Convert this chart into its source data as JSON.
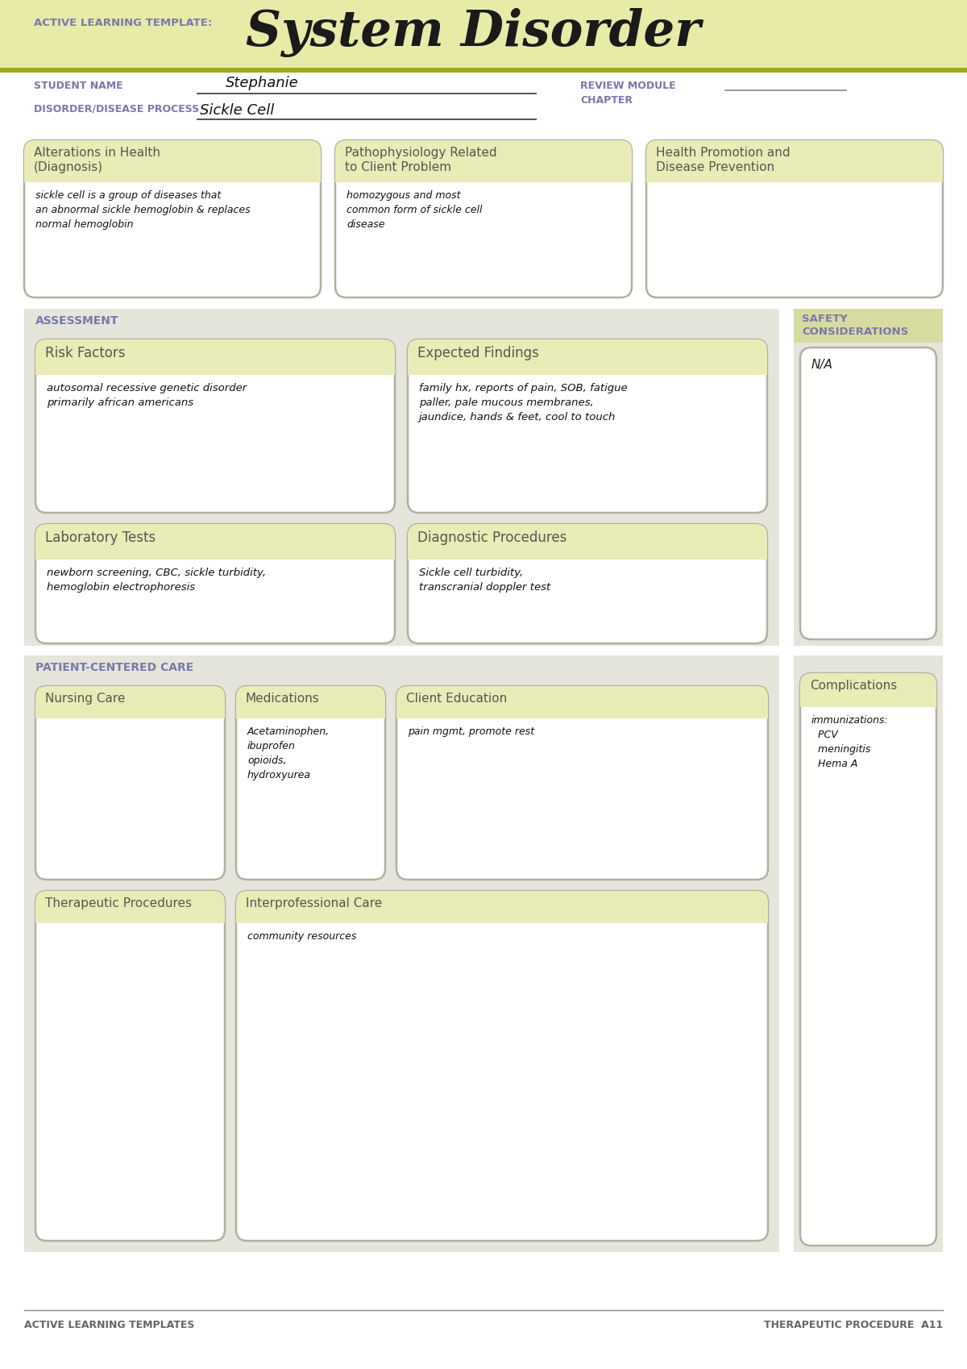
{
  "bg_header_color": "#e8eba8",
  "bg_section_color": "#d8dba0",
  "bg_white": "#ffffff",
  "bg_light_gray": "#e5e5dc",
  "box_fill": "#eaecb8",
  "box_stroke": "#b0b0a0",
  "title_large": "System Disorder",
  "title_small": "ACTIVE LEARNING TEMPLATE:",
  "student_name_label": "STUDENT NAME",
  "disorder_label": "DISORDER/DISEASE PROCESS",
  "review_module_label": "REVIEW MODULE\nCHAPTER",
  "student_name_value": "Stephanie",
  "disorder_value": "Sickle Cell",
  "section_assessment": "ASSESSMENT",
  "section_safety": "SAFETY\nCONSIDERATIONS",
  "section_patient_care": "PATIENT-CENTERED CARE",
  "box_titles": {
    "alterations": "Alterations in Health\n(Diagnosis)",
    "pathophysiology": "Pathophysiology Related\nto Client Problem",
    "health_promotion": "Health Promotion and\nDisease Prevention",
    "risk_factors": "Risk Factors",
    "expected_findings": "Expected Findings",
    "lab_tests": "Laboratory Tests",
    "diagnostic": "Diagnostic Procedures",
    "nursing_care": "Nursing Care",
    "medications": "Medications",
    "client_education": "Client Education",
    "therapeutic": "Therapeutic Procedures",
    "interprofessional": "Interprofessional Care",
    "complications": "Complications"
  },
  "handwritten_texts": {
    "alterations": "sickle cell is a group of diseases that\nan abnormal sickle hemoglobin & replaces\nnormal hemoglobin",
    "pathophysiology": "homozygous and most\ncommon form of sickle cell\ndisease",
    "health_promotion": "",
    "risk_factors": "autosomal recessive genetic disorder\nprimarily african americans",
    "expected_findings": "family hx, reports of pain, SOB, fatigue\npaller, pale mucous membranes,\njaundice, hands & feet, cool to touch",
    "lab_tests": "newborn screening, CBC, sickle turbidity,\nhemoglobin electrophoresis",
    "diagnostic": "Sickle cell turbidity,\ntranscranial doppler test",
    "safety": "N/A",
    "nursing_care": "",
    "medications": "Acetaminophen,\nibuprofen\nopioids,\nhydroxyurea",
    "client_education": "pain mgmt, promote rest",
    "therapeutic": "",
    "interprofessional": "community resources",
    "complications": "immunizations:\n  PCV\n  meningitis\n  Hema A"
  },
  "footer_left": "ACTIVE LEARNING TEMPLATES",
  "footer_right": "THERAPEUTIC PROCEDURE  A11",
  "olive_line_color": "#9ea820",
  "purple_label_color": "#7878aa"
}
